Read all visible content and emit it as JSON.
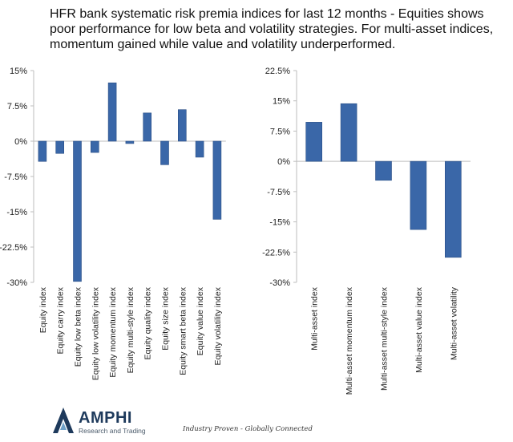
{
  "title": "HFR bank systematic risk premia indices for last 12 months - Equities shows poor performance for low beta and volatility strategies. For multi-asset indices, momentum gained while value and volatility underperformed.",
  "colors": {
    "bar": "#3a67a8",
    "bar_stroke": "#2b4f86",
    "axis": "#bdbdbd"
  },
  "chart_data": [
    {
      "type": "bar",
      "title": "",
      "xlabel": "",
      "ylabel": "",
      "ylim": [
        -30,
        15
      ],
      "yticks": [
        15,
        7.5,
        0,
        -7.5,
        -15,
        -22.5,
        -30
      ],
      "ytick_labels": [
        "15%",
        "7.5%",
        "0%",
        "-7.5%",
        "-15%",
        "-22.5%",
        "-30%"
      ],
      "categories": [
        "Equity index",
        "Equity carry index",
        "Equity low beta index",
        "Equity low volatility index",
        "Equity momentum index",
        "Equity multi-style index",
        "Equity quality index",
        "Equity size index",
        "Equity smart beta index",
        "Equity value index",
        "Equity volatility index"
      ],
      "values": [
        -4.3,
        -2.6,
        -29.8,
        -2.4,
        12.4,
        -0.5,
        6.0,
        -5.0,
        6.7,
        -3.4,
        -16.6
      ],
      "grid": false
    },
    {
      "type": "bar",
      "title": "",
      "xlabel": "",
      "ylabel": "",
      "ylim": [
        -30,
        22.5
      ],
      "yticks": [
        22.5,
        15,
        7.5,
        0,
        -7.5,
        -15,
        -22.5,
        -30
      ],
      "ytick_labels": [
        "22.5%",
        "15%",
        "7.5%",
        "0%",
        "-7.5%",
        "-15%",
        "-22.5%",
        "-30%"
      ],
      "categories": [
        "Multi-asset index",
        "Multi-asset momentum index",
        "Multi-asset multi-style index",
        "Multi-asset value index",
        "Multi-asset volatility"
      ],
      "values": [
        9.7,
        14.3,
        -4.7,
        -16.9,
        -23.8
      ],
      "grid": false
    }
  ],
  "footer": {
    "brand": "AMPHI",
    "subtitle": "Research and Trading",
    "tagline": "Industry Proven - Globally Connected",
    "logo_icon": "amphi-logo-icon"
  }
}
